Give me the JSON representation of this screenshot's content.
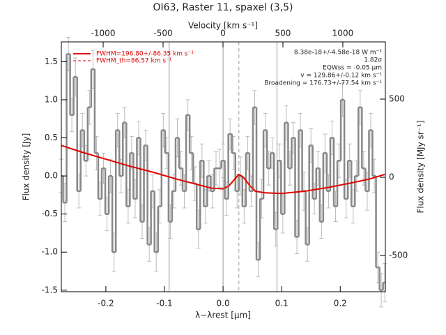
{
  "chart_data": {
    "type": "line",
    "title": "OI63, Raster 11, spaxel (3,5)",
    "x_label": "λ−λrest [μm]",
    "y_label": "Flux density [Jy]",
    "x2_label": "Velocity [km s⁻¹]",
    "y2_label": "Flux density [MJy sr⁻¹]",
    "xlim": [
      -0.276,
      0.277
    ],
    "ylim": [
      -1.52,
      1.76
    ],
    "x2lim": [
      -1349,
      1355
    ],
    "y2lim": [
      -732,
      866
    ],
    "xticks": [
      -0.2,
      -0.1,
      {
        "value": 0,
        "label": "0.0"
      },
      0.1,
      0.2
    ],
    "yticks": [
      -1.5,
      {
        "value": -1,
        "label": "-1.0"
      },
      -0.5,
      {
        "value": 0,
        "label": "0.0"
      },
      0.5,
      {
        "value": 1,
        "label": "1.0"
      },
      1.5
    ],
    "x2ticks": [
      -1000,
      -500,
      0,
      500,
      1000
    ],
    "y2ticks": [
      -500,
      0,
      500
    ],
    "vlines": [
      -0.092,
      0,
      0.092
    ],
    "dashed_vline": 0.027,
    "spectrum": {
      "color": "#888888",
      "error_color": "#bbbbbb",
      "x_start": -0.276,
      "bin_width": 0.006,
      "values": [
        0.0,
        -0.35,
        1.6,
        0.8,
        1.3,
        -0.2,
        0.6,
        0.2,
        0.9,
        1.4,
        0.3,
        -0.3,
        0.1,
        -0.5,
        0.0,
        -1.0,
        0.6,
        0.0,
        0.7,
        -0.4,
        0.3,
        -0.3,
        0.5,
        -0.6,
        0.4,
        -0.9,
        -0.2,
        -1.0,
        -0.4,
        0.6,
        0.3,
        -0.6,
        -0.2,
        0.5,
        0.1,
        -0.2,
        0.8,
        0.3,
        -0.1,
        -0.7,
        0.2,
        -0.4,
        0.0,
        -0.2,
        0.1,
        0.1,
        0.2,
        -0.3,
        0.55,
        0.3,
        -0.2,
        0.0,
        -0.4,
        0.3,
        -0.2,
        0.9,
        -1.1,
        -0.3,
        0.6,
        0.1,
        0.3,
        -0.7,
        0.2,
        -0.5,
        0.7,
        0.1,
        0.5,
        -0.8,
        0.6,
        -0.2,
        -0.9,
        0.4,
        -0.3,
        0.1,
        -0.6,
        0.3,
        -0.2,
        0.5,
        -0.4,
        0.2,
        1.0,
        -0.3,
        0.2,
        -0.4,
        0.0,
        0.9,
        0.1,
        -0.2,
        0.6,
        0.0,
        -1.2,
        -1.5,
        -1.4
      ],
      "errors": [
        0.22,
        0.25,
        0.22,
        0.22,
        0.25,
        0.22,
        0.22,
        0.2,
        0.22,
        0.25,
        0.22,
        0.22,
        0.2,
        0.22,
        0.22,
        0.25,
        0.22,
        0.22,
        0.2,
        0.22,
        0.22,
        0.25,
        0.22,
        0.22,
        0.2,
        0.22,
        0.22,
        0.25,
        0.22,
        0.22,
        0.2,
        0.22,
        0.22,
        0.25,
        0.22,
        0.22,
        0.2,
        0.22,
        0.22,
        0.25,
        0.22,
        0.22,
        0.2,
        0.22,
        0.22,
        0.25,
        0.22,
        0.22,
        0.2,
        0.22,
        0.22,
        0.25,
        0.22,
        0.22,
        0.2,
        0.22,
        0.22,
        0.25,
        0.22,
        0.22,
        0.2,
        0.22,
        0.22,
        0.25,
        0.22,
        0.22,
        0.2,
        0.22,
        0.22,
        0.25,
        0.22,
        0.22,
        0.2,
        0.22,
        0.22,
        0.25,
        0.22,
        0.22,
        0.2,
        0.22,
        0.22,
        0.25,
        0.22,
        0.22,
        0.2,
        0.22,
        0.22,
        0.25,
        0.22,
        0.22,
        0.2,
        0.22,
        0.25
      ]
    },
    "series": [
      {
        "name": "FWHM=196.80+/-86.35 km s⁻¹",
        "color": "#e00000",
        "dashed": false,
        "x": [
          -0.276,
          -0.24,
          -0.2,
          -0.16,
          -0.12,
          -0.08,
          -0.04,
          -0.02,
          0.0,
          0.01,
          0.02,
          0.027,
          0.035,
          0.045,
          0.055,
          0.07,
          0.1,
          0.14,
          0.18,
          0.22,
          0.25,
          0.276
        ],
        "values": [
          0.4,
          0.31,
          0.22,
          0.13,
          0.05,
          -0.04,
          -0.12,
          -0.16,
          -0.17,
          -0.13,
          -0.04,
          0.02,
          -0.02,
          -0.12,
          -0.2,
          -0.22,
          -0.23,
          -0.2,
          -0.15,
          -0.09,
          -0.04,
          0.02
        ]
      },
      {
        "name": "FWHM_th=86.57 km s⁻¹",
        "color": "#e07020",
        "dashed": true,
        "x": [
          0.0,
          0.015,
          0.027,
          0.04,
          0.055
        ],
        "values": [
          -0.18,
          -0.1,
          0.0,
          -0.1,
          -0.18
        ]
      }
    ],
    "annotations": [
      "8.38e-18+/-4.58e-18 W m⁻²",
      "1.82σ",
      "EQWss = -0.05 μm",
      "v = 129.86+/-0.12 km s⁻¹",
      "Broadening = 176.73+/-77.54 km s⁻¹"
    ]
  }
}
